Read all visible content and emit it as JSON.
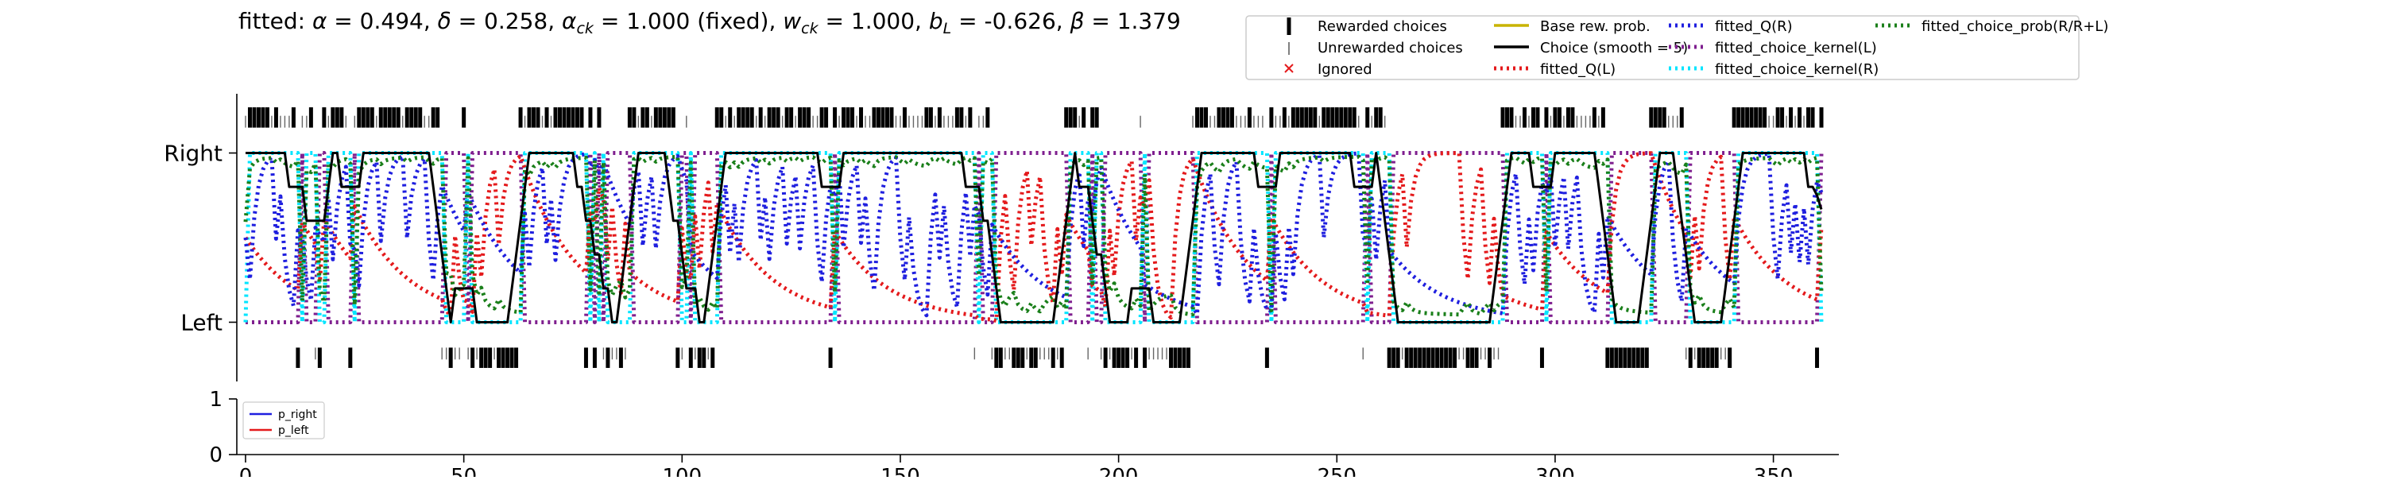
{
  "chart_data": [
    {
      "type": "line",
      "title_parts": [
        {
          "t": "fitted: "
        },
        {
          "t": "α",
          "i": 1
        },
        {
          "t": " = 0.494, "
        },
        {
          "t": "δ",
          "i": 1
        },
        {
          "t": " = 0.258, "
        },
        {
          "t": "α",
          "i": 1
        },
        {
          "t": "ck",
          "i": 1,
          "sub": 1
        },
        {
          "t": " = 1.000 (fixed), "
        },
        {
          "t": "w",
          "i": 1
        },
        {
          "t": "ck",
          "i": 1,
          "sub": 1
        },
        {
          "t": " = 1.000, "
        },
        {
          "t": "b",
          "i": 1
        },
        {
          "t": "L",
          "i": 1,
          "sub": 1
        },
        {
          "t": " = -0.626, "
        },
        {
          "t": "β",
          "i": 1
        },
        {
          "t": " = 1.379"
        }
      ],
      "y_ticks": [
        {
          "value": 0,
          "label": "Left"
        },
        {
          "value": 1,
          "label": "Right"
        }
      ],
      "xlim": [
        -2,
        365
      ],
      "ylim": [
        -0.35,
        1.35
      ],
      "legend": [
        {
          "label": "Rewarded choices",
          "kind": "tick-thick",
          "color": "#000000"
        },
        {
          "label": "Unrewarded choices",
          "kind": "tick-thin",
          "color": "#555555"
        },
        {
          "label": "Ignored",
          "kind": "x",
          "color": "#e41a1c"
        },
        {
          "label": "Base rew. prob.",
          "kind": "solid",
          "color": "#c8b400"
        },
        {
          "label": "Choice (smooth = 5)",
          "kind": "solid",
          "color": "#000000"
        },
        {
          "label": "fitted_Q(L)",
          "kind": "dotted",
          "color": "#e41a1c"
        },
        {
          "label": "fitted_Q(R)",
          "kind": "dotted",
          "color": "#1f1fdf"
        },
        {
          "label": "fitted_choice_kernel(L)",
          "kind": "dotted",
          "color": "#7f1f8f"
        },
        {
          "label": "fitted_choice_kernel(R)",
          "kind": "dotted",
          "color": "#00e5ff"
        },
        {
          "label": "fitted_choice_prob(R/R+L)",
          "kind": "dotted",
          "color": "#1a7f1a"
        }
      ],
      "choice_blocks": [
        {
          "start": 0,
          "end": 45,
          "choice": "R"
        },
        {
          "start": 45,
          "end": 63,
          "choice": "L"
        },
        {
          "start": 63,
          "end": 80,
          "choice": "R"
        },
        {
          "start": 80,
          "end": 88,
          "choice": "L"
        },
        {
          "start": 88,
          "end": 100,
          "choice": "R"
        },
        {
          "start": 100,
          "end": 107,
          "choice": "L"
        },
        {
          "start": 107,
          "end": 143,
          "choice": "R"
        },
        {
          "start": 143,
          "end": 172,
          "choice": "R"
        },
        {
          "start": 172,
          "end": 188,
          "choice": "L"
        },
        {
          "start": 188,
          "end": 196,
          "choice": "R"
        },
        {
          "start": 196,
          "end": 217,
          "choice": "L"
        },
        {
          "start": 217,
          "end": 262,
          "choice": "R"
        },
        {
          "start": 262,
          "end": 288,
          "choice": "L"
        },
        {
          "start": 288,
          "end": 312,
          "choice": "R"
        },
        {
          "start": 312,
          "end": 322,
          "choice": "L"
        },
        {
          "start": 322,
          "end": 330,
          "choice": "R"
        },
        {
          "start": 330,
          "end": 343,
          "choice": "L"
        },
        {
          "start": 343,
          "end": 362,
          "choice": "R"
        }
      ]
    },
    {
      "type": "line",
      "xlim": [
        -2,
        365
      ],
      "ylim": [
        0,
        1
      ],
      "x_ticks": [
        0,
        50,
        100,
        150,
        200,
        250,
        300,
        350
      ],
      "y_ticks": [
        0,
        1
      ],
      "series": [
        {
          "name": "p_right",
          "color": "#1f1fdf"
        },
        {
          "name": "p_left",
          "color": "#e41a1c"
        }
      ]
    }
  ]
}
